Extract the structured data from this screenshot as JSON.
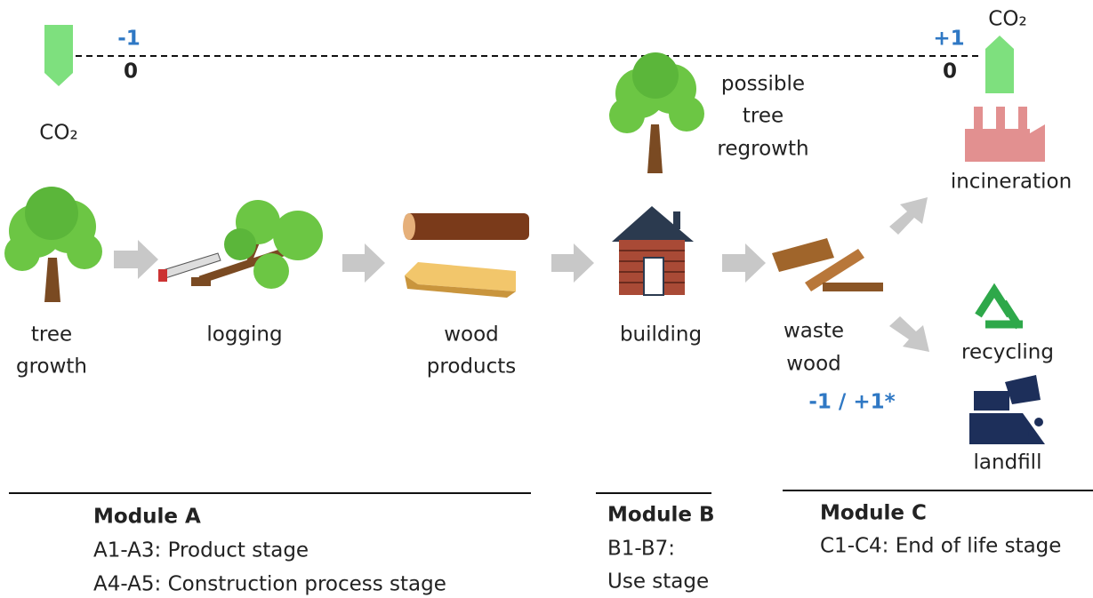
{
  "carbon_line": {
    "left_co2": "CO₂",
    "left_flow": "-1",
    "left_balance": "0",
    "right_co2": "CO₂",
    "right_flow": "+1",
    "right_balance": "0"
  },
  "stages": [
    {
      "label": [
        "tree",
        "growth"
      ]
    },
    {
      "label": [
        "logging"
      ]
    },
    {
      "label": [
        "wood",
        "products"
      ]
    },
    {
      "label": [
        "building"
      ]
    },
    {
      "label": [
        "waste",
        "wood"
      ]
    }
  ],
  "regrowth": [
    "possible",
    "tree",
    "regrowth"
  ],
  "waste_balance": "-1 / +1*",
  "end_of_life": [
    {
      "label": "incineration"
    },
    {
      "label": "recycling"
    },
    {
      "label": "landfill"
    }
  ],
  "modules": [
    {
      "title": "Module A",
      "lines": [
        "A1-A3: Product stage",
        "A4-A5: Construction process stage"
      ]
    },
    {
      "title": "Module B",
      "lines": [
        "B1-B7:",
        "Use stage"
      ]
    },
    {
      "title": "Module C",
      "lines": [
        "C1-C4: End of life stage"
      ]
    }
  ]
}
